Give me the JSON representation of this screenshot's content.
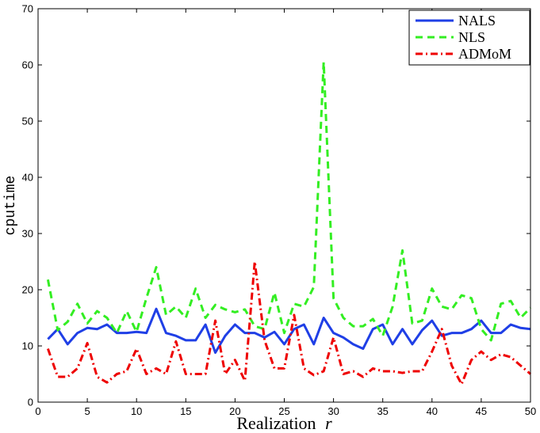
{
  "chart_data": {
    "type": "line",
    "xlabel": "Realization",
    "xlabel_var": "r",
    "ylabel": "cputime",
    "xlim": [
      0,
      50
    ],
    "ylim": [
      0,
      70
    ],
    "xticks": [
      0,
      5,
      10,
      15,
      20,
      25,
      30,
      35,
      40,
      45,
      50
    ],
    "yticks": [
      0,
      10,
      20,
      30,
      40,
      50,
      60,
      70
    ],
    "grid": false,
    "legend_position": "top-right",
    "x": [
      1,
      2,
      3,
      4,
      5,
      6,
      7,
      8,
      9,
      10,
      11,
      12,
      13,
      14,
      15,
      16,
      17,
      18,
      19,
      20,
      21,
      22,
      23,
      24,
      25,
      26,
      27,
      28,
      29,
      30,
      31,
      32,
      33,
      34,
      35,
      36,
      37,
      38,
      39,
      40,
      41,
      42,
      43,
      44,
      45,
      46,
      47,
      48,
      49,
      50
    ],
    "series": [
      {
        "name": "NALS",
        "color": "#1f3fe6",
        "style": "solid",
        "values": [
          11.2,
          13.0,
          10.3,
          12.3,
          13.2,
          13.0,
          13.8,
          12.3,
          12.3,
          12.5,
          12.3,
          16.6,
          12.3,
          11.8,
          11.0,
          11.0,
          13.8,
          8.8,
          11.8,
          13.8,
          12.3,
          12.3,
          11.5,
          12.5,
          10.3,
          13.0,
          13.8,
          10.3,
          15.0,
          12.3,
          11.5,
          10.3,
          9.5,
          13.0,
          13.8,
          10.3,
          13.0,
          10.3,
          12.8,
          14.5,
          11.8,
          12.3,
          12.3,
          13.0,
          14.5,
          12.3,
          12.3,
          13.8,
          13.2,
          13.0
        ]
      },
      {
        "name": "NLS",
        "color": "#33ee22",
        "style": "dashed",
        "values": [
          21.8,
          12.8,
          14.3,
          17.5,
          14.0,
          16.2,
          15.0,
          12.3,
          16.2,
          12.5,
          18.5,
          24.0,
          15.5,
          17.0,
          15.0,
          20.2,
          15.0,
          17.3,
          16.5,
          16.0,
          16.5,
          13.5,
          13.0,
          19.5,
          12.3,
          17.5,
          17.0,
          20.5,
          60.5,
          18.5,
          15.0,
          13.5,
          13.5,
          14.8,
          11.8,
          17.0,
          27.0,
          14.0,
          14.5,
          20.2,
          17.0,
          16.5,
          19.0,
          18.5,
          13.0,
          11.0,
          17.5,
          18.0,
          15.0,
          16.8
        ]
      },
      {
        "name": "ADMoM",
        "color": "#ee0000",
        "style": "dashdot",
        "values": [
          9.5,
          4.5,
          4.5,
          6.0,
          10.5,
          4.5,
          3.5,
          5.0,
          5.5,
          9.5,
          5.0,
          6.0,
          5.0,
          10.8,
          5.0,
          5.0,
          5.0,
          14.5,
          5.0,
          7.5,
          3.8,
          25.0,
          11.0,
          6.0,
          6.0,
          15.5,
          6.0,
          4.8,
          5.5,
          11.5,
          5.0,
          5.5,
          4.5,
          6.0,
          5.5,
          5.5,
          5.2,
          5.5,
          5.5,
          9.0,
          13.0,
          6.5,
          3.2,
          7.5,
          9.0,
          7.5,
          8.5,
          8.0,
          6.5,
          5.0
        ]
      }
    ]
  }
}
